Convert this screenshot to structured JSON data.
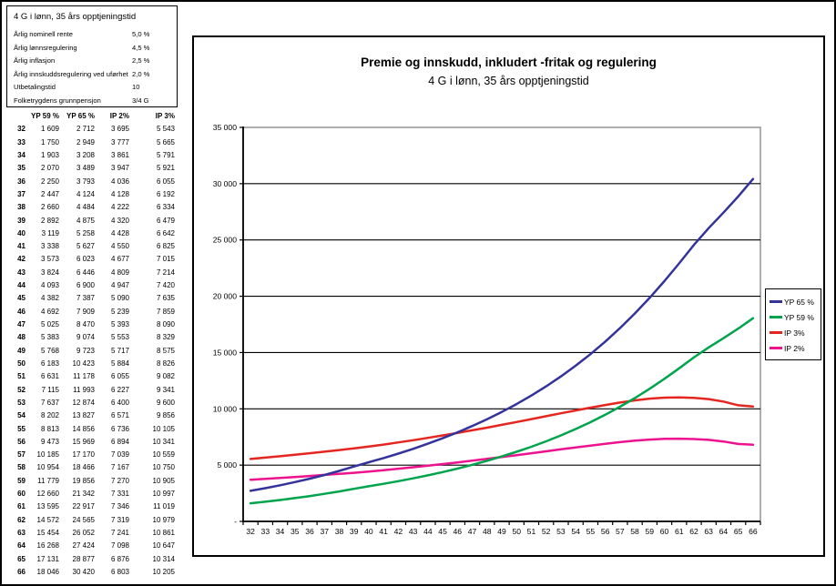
{
  "parameters": {
    "title": "4 G i lønn, 35 års opptjeningstid",
    "rows": [
      {
        "label": "Årlig nominell rente",
        "value": "5,0 %"
      },
      {
        "label": "Årlig lønnsregulering",
        "value": "4,5 %"
      },
      {
        "label": "Årlig inflasjon",
        "value": "2,5 %"
      },
      {
        "label": "Årlig innskuddsregulering ved uførhet",
        "value": "2,0 %"
      },
      {
        "label": "Utbetalingstid",
        "value": "10"
      },
      {
        "label": "Folketrygdens grunnpensjon",
        "value": "3/4 G"
      }
    ]
  },
  "table": {
    "age_column_header": "",
    "columns": [
      "YP 59 %",
      "YP 65 %",
      "IP 2%",
      "IP 3%"
    ]
  },
  "chart_data": {
    "type": "line",
    "title": "Premie og innskudd, inkludert -fritak og regulering",
    "subtitle": "4 G i lønn, 35 års opptjeningstid",
    "xlabel": "",
    "ylabel": "",
    "x": [
      32,
      33,
      34,
      35,
      36,
      37,
      38,
      39,
      40,
      41,
      42,
      43,
      44,
      45,
      46,
      47,
      48,
      49,
      50,
      51,
      52,
      53,
      54,
      55,
      56,
      57,
      58,
      59,
      60,
      61,
      62,
      63,
      64,
      65,
      66
    ],
    "ylim": [
      0,
      35000
    ],
    "ytick_step": 5000,
    "ytick_labels_top_down": [
      "35 000",
      "30 000",
      "25 000",
      "20 000",
      "15 000",
      "10 000",
      "5 000",
      "-"
    ],
    "grid": "horizontal",
    "legend_position": "right",
    "series": [
      {
        "name": "YP 65 %",
        "color": "#33339B",
        "values": [
          2712,
          2949,
          3208,
          3489,
          3793,
          4124,
          4484,
          4875,
          5258,
          5627,
          6023,
          6446,
          6900,
          7387,
          7909,
          8470,
          9074,
          9723,
          10423,
          11178,
          11993,
          12874,
          13827,
          14856,
          15969,
          17170,
          18466,
          19856,
          21342,
          22917,
          24565,
          26052,
          27424,
          28877,
          30420
        ]
      },
      {
        "name": "YP 59 %",
        "color": "#00A44C",
        "values": [
          1609,
          1750,
          1903,
          2070,
          2250,
          2447,
          2660,
          2892,
          3119,
          3338,
          3573,
          3824,
          4093,
          4382,
          4692,
          5025,
          5383,
          5768,
          6183,
          6631,
          7115,
          7637,
          8202,
          8813,
          9473,
          10185,
          10954,
          11779,
          12660,
          13595,
          14572,
          15454,
          16268,
          17131,
          18046
        ]
      },
      {
        "name": "IP 3%",
        "color": "#E52620",
        "values": [
          5543,
          5665,
          5791,
          5921,
          6055,
          6192,
          6334,
          6479,
          6642,
          6825,
          7015,
          7214,
          7420,
          7635,
          7859,
          8090,
          8329,
          8575,
          8826,
          9082,
          9341,
          9600,
          9856,
          10105,
          10341,
          10559,
          10750,
          10905,
          10997,
          11019,
          10979,
          10861,
          10647,
          10314,
          10205
        ]
      },
      {
        "name": "IP 2%",
        "color": "#ED138F",
        "values": [
          3695,
          3777,
          3861,
          3947,
          4036,
          4128,
          4222,
          4320,
          4428,
          4550,
          4677,
          4809,
          4947,
          5090,
          5239,
          5393,
          5553,
          5717,
          5884,
          6055,
          6227,
          6400,
          6571,
          6736,
          6894,
          7039,
          7167,
          7270,
          7331,
          7346,
          7319,
          7241,
          7098,
          6876,
          6803
        ]
      }
    ]
  }
}
